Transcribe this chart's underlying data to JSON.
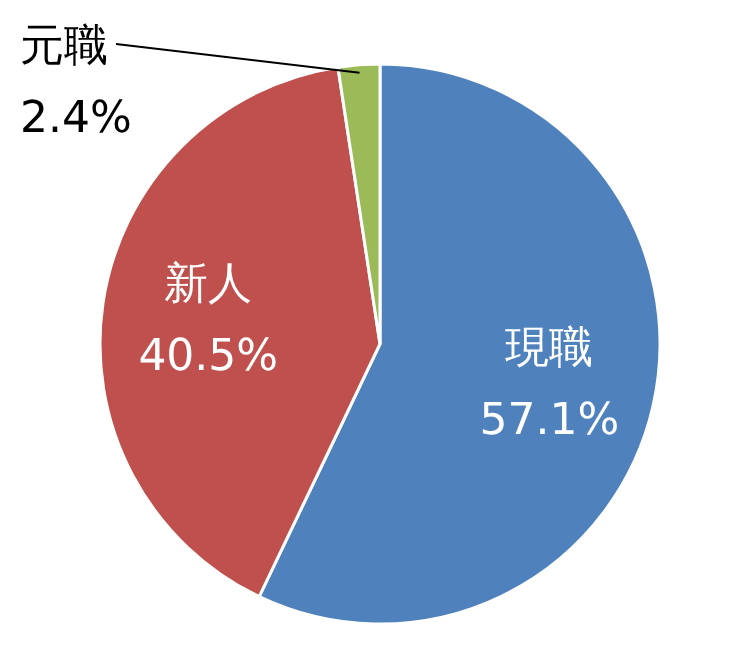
{
  "chart_data": {
    "type": "pie",
    "categories": [
      "現職",
      "新人",
      "元職"
    ],
    "values": [
      57.1,
      40.5,
      2.4
    ],
    "colors": [
      "#4f81bd",
      "#c0504d",
      "#9bbb59"
    ],
    "value_labels": [
      "57.1%",
      "40.5%",
      "2.4%"
    ]
  }
}
